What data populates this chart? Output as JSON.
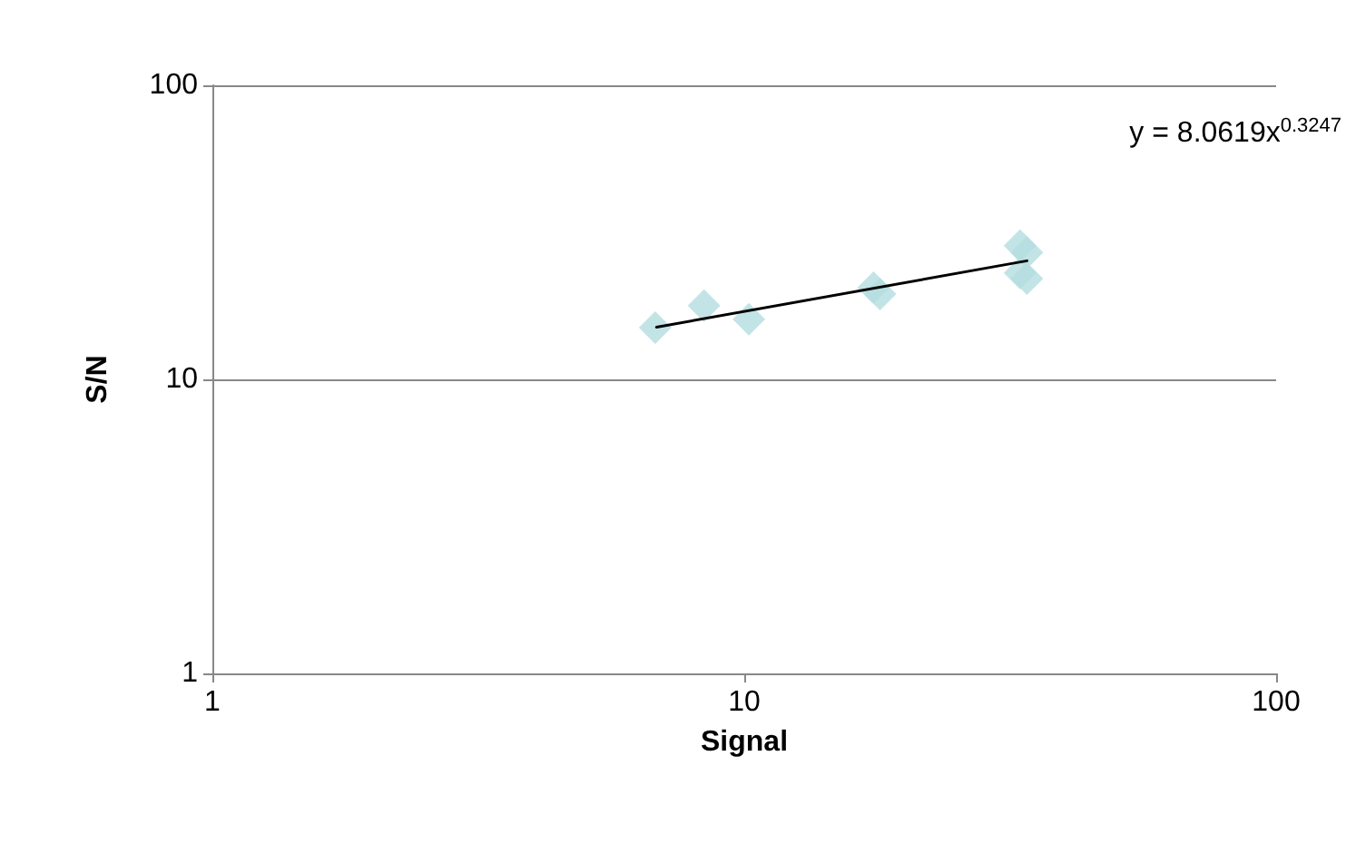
{
  "chart_data": {
    "type": "scatter",
    "xlabel": "Signal",
    "ylabel": "S/N",
    "log": "xy",
    "xlim": [
      1,
      100
    ],
    "xticks": [
      1,
      10,
      100
    ],
    "ylim": [
      1,
      100
    ],
    "yticks": [
      1,
      10,
      100
    ],
    "grid": "y",
    "marker": "diamond",
    "annotations": [
      "y = 8.0619x$^{0.3247}$"
    ],
    "series": [
      {
        "color": "#b4dde0",
        "x": [
          6.8,
          8.4,
          10.2,
          17.5,
          18,
          33,
          34,
          33,
          34
        ],
        "values": [
          15,
          17.8,
          16,
          20.5,
          19.5,
          28.5,
          27,
          23,
          22
        ]
      },
      {
        "type": "line",
        "color": "#000000",
        "marker": "none",
        "x": [
          6.84,
          34
        ],
        "values": [
          15.05,
          25.3
        ]
      }
    ]
  }
}
